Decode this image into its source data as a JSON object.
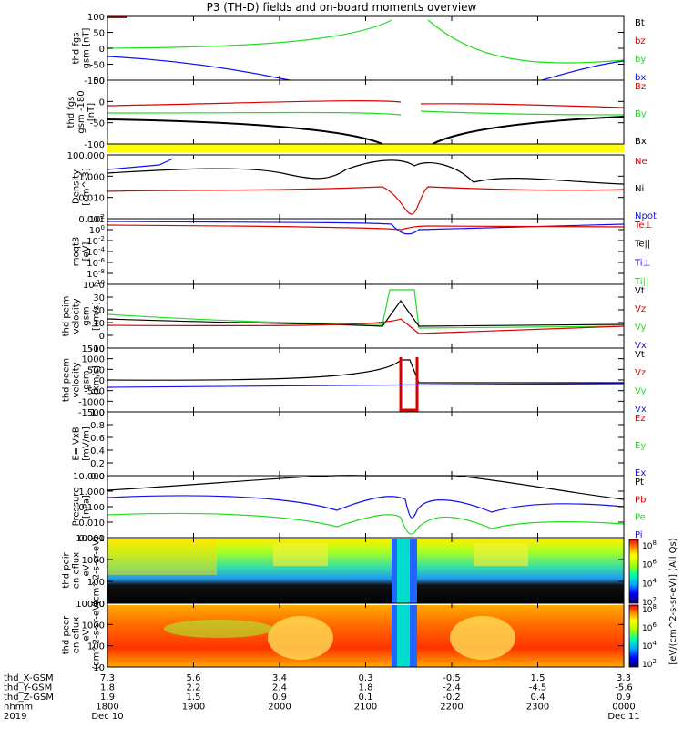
{
  "title": "P3 (TH-D) fields and on-board moments overview",
  "colors": {
    "black": "#000000",
    "red": "#dd0000",
    "green": "#22dd22",
    "blue": "#1111ee",
    "yellow": "#ffff00"
  },
  "colorbar": {
    "label": "[eV/(cm^2-s-sr-eV)] (All Qs)",
    "ticks_upper": [
      "10^8",
      "10^6",
      "10^4",
      "10^2"
    ],
    "ticks_lower": [
      "10^8",
      "10^6",
      "10^4",
      "10^2"
    ]
  },
  "time_axis": {
    "rows": [
      {
        "label": "thd_X-GSM",
        "values": [
          "7.3",
          "5.6",
          "3.4",
          "0.3",
          "-0.5",
          "1.5",
          "3.3"
        ]
      },
      {
        "label": "thd_Y-GSM",
        "values": [
          "1.8",
          "2.2",
          "2.4",
          "1.8",
          "-2.4",
          "-4.5",
          "-5.6"
        ]
      },
      {
        "label": "thd_Z-GSM",
        "values": [
          "1.9",
          "1.5",
          "0.9",
          "0.1",
          "-0.2",
          "0.4",
          "0.9"
        ]
      },
      {
        "label": "hhmm",
        "values": [
          "1800",
          "1900",
          "2000",
          "2100",
          "2200",
          "2300",
          "0000"
        ]
      },
      {
        "label": "2019",
        "values": [
          "Dec 10",
          "",
          "",
          "",
          "",
          "",
          "Dec 11"
        ]
      }
    ]
  },
  "chart_data": [
    {
      "type": "line",
      "id": "fgs",
      "ylabel": "thd fgs gsm [nT]",
      "ylim": [
        -100,
        100
      ],
      "yticks": [
        "100",
        "50",
        "0",
        "-50",
        "-100"
      ],
      "series": [
        {
          "name": "Bt",
          "color": "black"
        },
        {
          "name": "bz",
          "color": "red"
        },
        {
          "name": "by",
          "color": "green"
        },
        {
          "name": "bx",
          "color": "blue"
        }
      ]
    },
    {
      "type": "line",
      "id": "fgs180",
      "ylabel": "thd fgs gsm -180 [nT]",
      "ylim": [
        -125,
        50
      ],
      "yticks": [
        "50",
        "0",
        "-50",
        "-100"
      ],
      "series": [
        {
          "name": "Bz",
          "color": "red"
        },
        {
          "name": "By",
          "color": "green"
        },
        {
          "name": "Bx",
          "color": "black"
        }
      ]
    },
    {
      "type": "line",
      "id": "density",
      "ylabel": "Density [cm^-3]",
      "log": true,
      "yticks": [
        "100.000",
        "1.000",
        "0.010",
        "0.001"
      ],
      "series": [
        {
          "name": "Ne",
          "color": "red"
        },
        {
          "name": "Ni",
          "color": "black"
        },
        {
          "name": "Npot",
          "color": "blue"
        }
      ]
    },
    {
      "type": "line",
      "id": "temp",
      "ylabel": "moqt3 [eV]",
      "log": true,
      "yticks": [
        "10^2",
        "10^0",
        "10^-2",
        "10^-4",
        "10^-6",
        "10^-8",
        "10^-10"
      ],
      "series": [
        {
          "name": "Te⊥",
          "color": "red"
        },
        {
          "name": "Te||",
          "color": "black"
        },
        {
          "name": "Ti⊥",
          "color": "blue"
        },
        {
          "name": "Ti||",
          "color": "green"
        }
      ]
    },
    {
      "type": "line",
      "id": "peim",
      "ylabel": "thd peim velocity gsm [km/s]",
      "ylim": [
        -10,
        40
      ],
      "yticks": [
        "40",
        "30",
        "20",
        "10",
        "0",
        "-10"
      ],
      "series": [
        {
          "name": "Vt",
          "color": "black"
        },
        {
          "name": "Vz",
          "color": "red"
        },
        {
          "name": "Vy",
          "color": "green"
        },
        {
          "name": "Vx",
          "color": "blue"
        }
      ]
    },
    {
      "type": "line",
      "id": "peem",
      "ylabel": "thd peem velocity gsm [km/s]",
      "ylim": [
        -1500,
        1500
      ],
      "yticks": [
        "1500",
        "1000",
        "500",
        "0",
        "-500",
        "-1000",
        "-1500"
      ],
      "series": [
        {
          "name": "Vt",
          "color": "black"
        },
        {
          "name": "Vz",
          "color": "red"
        },
        {
          "name": "Vy",
          "color": "green"
        },
        {
          "name": "Vx",
          "color": "blue"
        }
      ]
    },
    {
      "type": "line",
      "id": "efield",
      "ylabel": "E=-VxB [mV/m]",
      "ylim": [
        0,
        1
      ],
      "yticks": [
        "1.0",
        "0.8",
        "0.6",
        "0.4",
        "0.2",
        "0.0"
      ],
      "series": [
        {
          "name": "Ez",
          "color": "red"
        },
        {
          "name": "Ey",
          "color": "green"
        },
        {
          "name": "Ex",
          "color": "blue"
        }
      ]
    },
    {
      "type": "line",
      "id": "pressure",
      "ylabel": "Pressure [nPa]",
      "log": true,
      "yticks": [
        "10.000",
        "1.000",
        "0.100",
        "0.010",
        "0.001"
      ],
      "series": [
        {
          "name": "Pt",
          "color": "black"
        },
        {
          "name": "Pb",
          "color": "red"
        },
        {
          "name": "Pe",
          "color": "green"
        },
        {
          "name": "Pi",
          "color": "blue"
        }
      ]
    },
    {
      "type": "heatmap",
      "id": "peir",
      "ylabel": "thd peir en eflux eV (cm^2-s-sr-eV)",
      "log": true,
      "yticks": [
        "10000",
        "1000",
        "100",
        "10"
      ]
    },
    {
      "type": "heatmap",
      "id": "peer",
      "ylabel": "thd peer en eflux eV (cm^2-s-sr-eV)",
      "log": true,
      "yticks": [
        "10000",
        "1000",
        "100",
        "10"
      ]
    }
  ]
}
